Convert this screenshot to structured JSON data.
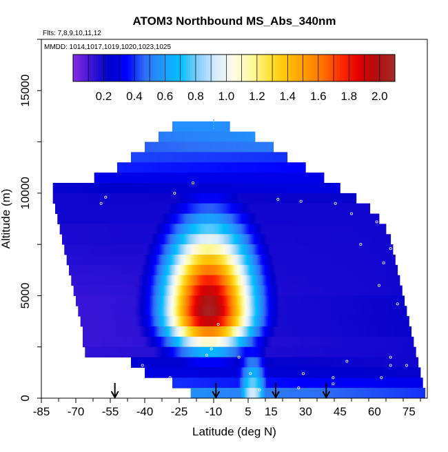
{
  "chart_data": {
    "type": "heatmap",
    "title": "ATOM3 Northbound MS_Abs_340nm",
    "flights_label": "Flts: 7,8,9,10,11,12",
    "dates_label": "MMDD: 1014,1017,1019,1020,1023,1025",
    "xlabel": "Latitude (deg N)",
    "ylabel": "Altitude (m)",
    "xlim": [
      -85,
      83
    ],
    "ylim": [
      0,
      17500
    ],
    "x_ticks": [
      -85,
      -70,
      -55,
      -40,
      -25,
      -10,
      5,
      15,
      30,
      45,
      60,
      75
    ],
    "y_ticks": [
      0,
      5000,
      10000,
      15000
    ],
    "colorbar": {
      "min": 0.0,
      "max": 2.1,
      "ticks": [
        0.2,
        0.4,
        0.6,
        0.8,
        1.0,
        1.2,
        1.4,
        1.6,
        1.8,
        2.0
      ],
      "colors": [
        "#8a2be2",
        "#3a16d6",
        "#0000cc",
        "#0000ff",
        "#2e6ff5",
        "#1e9bff",
        "#00bfff",
        "#87cefa",
        "#d6ecff",
        "#fffbe6",
        "#fff8a0",
        "#ffe135",
        "#ffc000",
        "#ff9900",
        "#ff7000",
        "#ff2a00",
        "#e00000",
        "#b01010",
        "#a52a2a"
      ]
    },
    "grid": false,
    "legend": "top-center",
    "flight_arrows_lat": [
      -53,
      -9,
      17,
      39
    ],
    "profile_rows": [
      {
        "alt": 13000,
        "lat_min": -28,
        "lat_max": -3,
        "start": 0.55,
        "end": 0.55
      },
      {
        "alt": 12500,
        "lat_min": -34,
        "lat_max": 8,
        "start": 0.5,
        "end": 0.55
      },
      {
        "alt": 12000,
        "lat_min": -40,
        "lat_max": 16,
        "start": 0.45,
        "end": 0.5
      },
      {
        "alt": 11500,
        "lat_min": -46,
        "lat_max": 22,
        "start": 0.42,
        "end": 0.4
      },
      {
        "alt": 11000,
        "lat_min": -52,
        "lat_max": 30,
        "start": 0.38,
        "end": 0.35
      },
      {
        "alt": 10500,
        "lat_min": -62,
        "lat_max": 38,
        "start": 0.3,
        "end": 0.3
      },
      {
        "alt": 10000,
        "lat_min": -80,
        "lat_max": 45,
        "start": 0.22,
        "end": 0.28
      },
      {
        "alt": 9500,
        "lat_min": -80,
        "lat_max": 52,
        "start": 0.2,
        "end": 0.22
      },
      {
        "alt": 9000,
        "lat_min": -79,
        "lat_max": 58,
        "start": 0.2,
        "end": 0.2
      },
      {
        "alt": 8500,
        "lat_min": -78,
        "lat_max": 62,
        "start": 0.2,
        "end": 0.2
      },
      {
        "alt": 8000,
        "lat_min": -77,
        "lat_max": 65,
        "start": 0.18,
        "end": 0.2
      },
      {
        "alt": 7500,
        "lat_min": -76,
        "lat_max": 67,
        "start": 0.18,
        "end": 0.2
      },
      {
        "alt": 7000,
        "lat_min": -75,
        "lat_max": 68,
        "start": 0.17,
        "end": 0.2
      },
      {
        "alt": 6500,
        "lat_min": -74,
        "lat_max": 69,
        "start": 0.16,
        "end": 0.2
      },
      {
        "alt": 6000,
        "lat_min": -73,
        "lat_max": 70,
        "start": 0.15,
        "end": 0.2
      },
      {
        "alt": 5500,
        "lat_min": -72,
        "lat_max": 71,
        "start": 0.14,
        "end": 0.2
      },
      {
        "alt": 5000,
        "lat_min": -71,
        "lat_max": 72,
        "start": 0.13,
        "end": 0.2
      },
      {
        "alt": 4500,
        "lat_min": -70,
        "lat_max": 73,
        "start": 0.12,
        "end": 0.22
      },
      {
        "alt": 4000,
        "lat_min": -69,
        "lat_max": 74,
        "start": 0.12,
        "end": 0.22
      },
      {
        "alt": 3500,
        "lat_min": -68,
        "lat_max": 75,
        "start": 0.12,
        "end": 0.22
      },
      {
        "alt": 3000,
        "lat_min": -67,
        "lat_max": 76,
        "start": 0.12,
        "end": 0.22
      },
      {
        "alt": 2500,
        "lat_min": -67,
        "lat_max": 77,
        "start": 0.12,
        "end": 0.2
      },
      {
        "alt": 2000,
        "lat_min": -66,
        "lat_max": 78,
        "start": 0.14,
        "end": 0.2
      },
      {
        "alt": 1500,
        "lat_min": -46,
        "lat_max": 79,
        "start": 0.25,
        "end": 0.2
      },
      {
        "alt": 1000,
        "lat_min": -40,
        "lat_max": 80,
        "start": 0.28,
        "end": 0.22
      },
      {
        "alt": 500,
        "lat_min": -28,
        "lat_max": 81,
        "start": 0.4,
        "end": 0.3
      },
      {
        "alt": 0,
        "lat_min": -20,
        "lat_max": 82,
        "start": 0.55,
        "end": 0.4
      }
    ],
    "plume": {
      "center_lat": -12,
      "center_alt": 4200,
      "peak": 2.05,
      "lat_sigma": 14,
      "alt_sigma_up": 2900,
      "alt_sigma_down": 1300
    },
    "inflow_column": {
      "center_lat": 7,
      "max_alt": 2500,
      "peak": 1.0,
      "lat_sigma": 5
    },
    "sample_points": [
      {
        "lat": -82,
        "alt": 10100
      },
      {
        "lat": -80,
        "alt": 9200
      },
      {
        "lat": -57,
        "alt": 9800
      },
      {
        "lat": -59,
        "alt": 9500
      },
      {
        "lat": -27,
        "alt": 10000
      },
      {
        "lat": -19,
        "alt": 10500
      },
      {
        "lat": 18,
        "alt": 9700
      },
      {
        "lat": 28,
        "alt": 9600
      },
      {
        "lat": 43,
        "alt": 9500
      },
      {
        "lat": 50,
        "alt": 9000
      },
      {
        "lat": 61,
        "alt": 8600
      },
      {
        "lat": 67,
        "alt": 7300
      },
      {
        "lat": 64,
        "alt": 6600
      },
      {
        "lat": 54,
        "alt": 7500
      },
      {
        "lat": 62,
        "alt": 5500
      },
      {
        "lat": 70,
        "alt": 4600
      },
      {
        "lat": 67,
        "alt": 2000
      },
      {
        "lat": 67,
        "alt": 1600
      },
      {
        "lat": 63,
        "alt": 1000
      },
      {
        "lat": 74,
        "alt": 1600
      },
      {
        "lat": 48,
        "alt": 1800
      },
      {
        "lat": 42,
        "alt": 1000
      },
      {
        "lat": 29,
        "alt": 1200
      },
      {
        "lat": -13,
        "alt": 2100
      },
      {
        "lat": -41,
        "alt": 1600
      },
      {
        "lat": -37,
        "alt": 700
      },
      {
        "lat": -29,
        "alt": 1000
      },
      {
        "lat": -11,
        "alt": 2400
      },
      {
        "lat": 1,
        "alt": 2000
      },
      {
        "lat": -8,
        "alt": 3600
      },
      {
        "lat": 6,
        "alt": 1200
      },
      {
        "lat": 10,
        "alt": 400
      },
      {
        "lat": 42,
        "alt": 700
      },
      {
        "lat": 27,
        "alt": 500
      }
    ]
  }
}
